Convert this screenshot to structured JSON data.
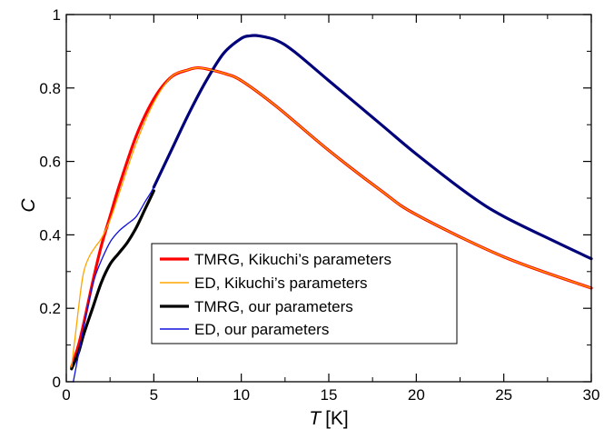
{
  "chart_data": {
    "type": "line",
    "xlabel": {
      "symbol": "T",
      "unit": "[K]"
    },
    "ylabel": "C",
    "xlim": [
      0,
      30
    ],
    "ylim": [
      0,
      1
    ],
    "xticks": [
      "0",
      "5",
      "10",
      "15",
      "20",
      "25",
      "30"
    ],
    "yticks": [
      "0",
      "0.2",
      "0.4",
      "0.6",
      "0.8",
      "1"
    ],
    "grid": false,
    "legend_position": "lower-center",
    "series": [
      {
        "name": "TMRG, Kikuchi’s parameters",
        "color": "#ff0000",
        "style": "thick",
        "x": [
          0.3,
          0.7,
          1.0,
          1.5,
          2.0,
          2.5,
          3.0,
          4.0,
          5.0,
          6.0,
          7.0,
          7.5,
          8.0,
          9.0,
          10.0,
          12.0,
          15.0,
          18.0,
          20.0,
          25.0,
          30.0
        ],
        "y": [
          0.04,
          0.1,
          0.16,
          0.27,
          0.37,
          0.45,
          0.53,
          0.67,
          0.77,
          0.83,
          0.85,
          0.855,
          0.852,
          0.84,
          0.82,
          0.75,
          0.63,
          0.52,
          0.455,
          0.34,
          0.255
        ]
      },
      {
        "name": "ED, Kikuchi’s parameters",
        "color": "#ffa500",
        "style": "thin",
        "x": [
          0.3,
          0.5,
          0.8,
          1.0,
          1.3,
          1.7,
          2.0,
          2.5,
          3.0,
          4.0,
          5.0,
          6.0,
          7.0,
          7.5,
          8.0,
          9.0,
          10.0,
          12.0,
          15.0,
          18.0,
          20.0,
          25.0,
          30.0
        ],
        "y": [
          0.04,
          0.12,
          0.24,
          0.3,
          0.34,
          0.37,
          0.39,
          0.44,
          0.51,
          0.65,
          0.76,
          0.83,
          0.85,
          0.855,
          0.852,
          0.84,
          0.82,
          0.75,
          0.63,
          0.52,
          0.455,
          0.34,
          0.255
        ]
      },
      {
        "name": "TMRG, our parameters",
        "color": "#000000",
        "style": "thick",
        "x": [
          0.3,
          0.7,
          1.0,
          1.5,
          2.0,
          2.5,
          3.0,
          3.5,
          4.0,
          4.5,
          5.0
        ],
        "y": [
          0.035,
          0.08,
          0.13,
          0.2,
          0.27,
          0.32,
          0.35,
          0.38,
          0.42,
          0.47,
          0.52
        ]
      },
      {
        "name": "ED, our parameters",
        "color": "#1010dd",
        "style": "thin",
        "x": [
          0.4,
          0.6,
          0.8,
          1.0,
          1.3,
          1.6,
          2.0,
          2.5,
          3.0,
          3.5,
          4.0,
          4.5,
          5.0,
          6.0,
          7.0,
          8.0,
          9.0,
          10.0,
          10.5,
          11.0,
          12.0,
          13.0,
          15.0,
          18.0,
          20.0,
          23.0,
          25.0,
          28.0,
          30.0
        ],
        "y": [
          0.0,
          0.05,
          0.1,
          0.15,
          0.22,
          0.28,
          0.33,
          0.38,
          0.41,
          0.43,
          0.45,
          0.49,
          0.53,
          0.63,
          0.73,
          0.82,
          0.895,
          0.935,
          0.942,
          0.942,
          0.93,
          0.9,
          0.82,
          0.7,
          0.62,
          0.51,
          0.45,
          0.38,
          0.335
        ]
      },
      {
        "name": "",
        "color": "#00007a",
        "style": "thick",
        "x": [
          5.0,
          6.0,
          7.0,
          8.0,
          9.0,
          10.0,
          10.5,
          11.0,
          12.0,
          13.0,
          15.0,
          18.0,
          20.0,
          23.0,
          25.0,
          28.0,
          30.0
        ],
        "y": [
          0.53,
          0.63,
          0.73,
          0.82,
          0.895,
          0.935,
          0.942,
          0.942,
          0.93,
          0.9,
          0.82,
          0.7,
          0.62,
          0.51,
          0.45,
          0.38,
          0.335
        ]
      }
    ]
  }
}
